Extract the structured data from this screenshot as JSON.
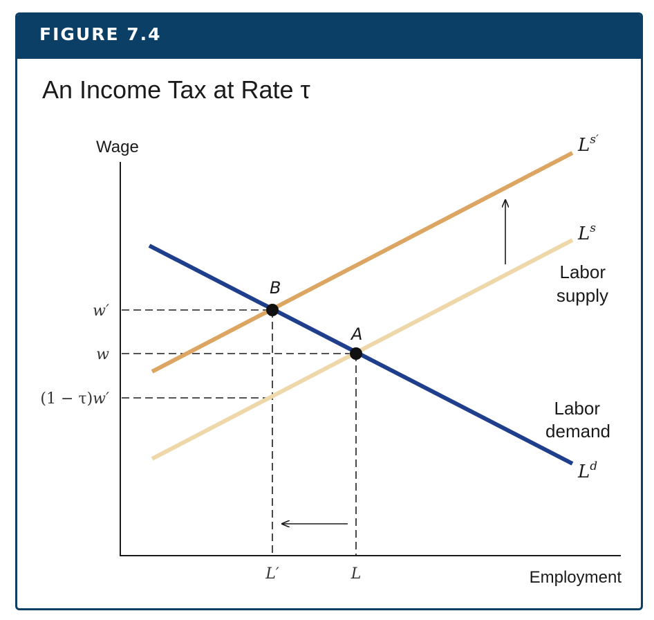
{
  "figure": {
    "label": "FIGURE 7.4",
    "title": "An Income Tax at Rate τ"
  },
  "axes": {
    "y_title": "Wage",
    "x_title": "Employment"
  },
  "y_ticks": {
    "w_prime": "w′",
    "w": "w",
    "net_wage_prefix": "(1 − τ)",
    "net_wage_var": "w′"
  },
  "x_ticks": {
    "L_prime": "L′",
    "L": "L"
  },
  "curves": {
    "supply_after_tax_base": "L",
    "supply_after_tax_sup": "s′",
    "supply_base": "L",
    "supply_sup": "s",
    "demand_base": "L",
    "demand_sup": "d"
  },
  "labels": {
    "labor_supply_line1": "Labor",
    "labor_supply_line2": "supply",
    "labor_demand_line1": "Labor",
    "labor_demand_line2": "demand"
  },
  "points": {
    "A": "A",
    "B": "B"
  },
  "colors": {
    "header": "#0b3f66",
    "demand": "#1f3f8c",
    "supply_after_tax": "#dca562",
    "supply": "#eed7a9",
    "dashes": "#1a1a1a"
  }
}
